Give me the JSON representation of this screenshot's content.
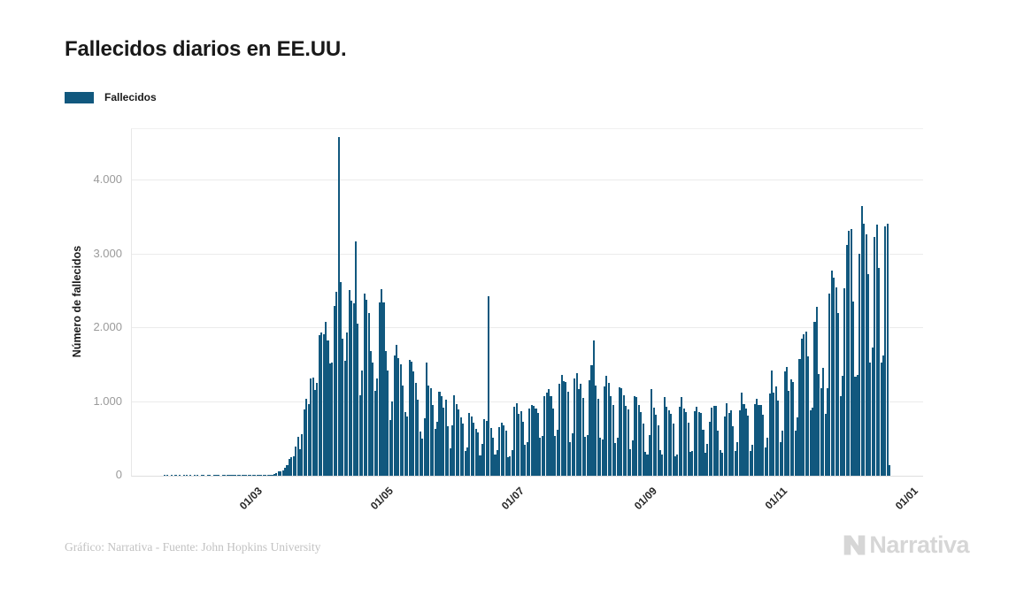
{
  "title": "Fallecidos diarios en EE.UU.",
  "legend": {
    "label": "Fallecidos",
    "color": "#11587e"
  },
  "y_axis": {
    "title": "Número de fallecidos",
    "ticks": [
      {
        "label": "0",
        "value": 0
      },
      {
        "label": "1.000",
        "value": 1000
      },
      {
        "label": "2.000",
        "value": 2000
      },
      {
        "label": "3.000",
        "value": 3000
      },
      {
        "label": "4.000",
        "value": 4000
      }
    ]
  },
  "x_axis": {
    "ticks": [
      {
        "label": "01/03",
        "day": 50
      },
      {
        "label": "01/05",
        "day": 111
      },
      {
        "label": "01/07",
        "day": 172
      },
      {
        "label": "01/09",
        "day": 234
      },
      {
        "label": "01/11",
        "day": 295
      },
      {
        "label": "01/01",
        "day": 356
      }
    ]
  },
  "footer": {
    "credit": "Gráfico: Narrativa - Fuente: John Hopkins University",
    "brand": "Narrativa"
  },
  "chart_data": {
    "type": "bar",
    "title": "Fallecidos diarios en EE.UU.",
    "xlabel": "",
    "ylabel": "Número de fallecidos",
    "series_name": "Fallecidos",
    "bar_color": "#11587e",
    "grid": true,
    "legend_position": "top-left",
    "ylim": [
      0,
      4700
    ],
    "y_tick_interval": 1000,
    "axis_start_date": "2020-01-11",
    "axis_total_days": 369,
    "series_start_date": "2020-01-26",
    "series_day_offset": 15,
    "x_tick_labels": [
      "01/03",
      "01/05",
      "01/07",
      "01/09",
      "01/11",
      "01/01"
    ],
    "notable_points": {
      "max_spike": {
        "date": "2020-04-16",
        "value": 4591
      },
      "june_spike": {
        "date": "2020-06-25",
        "value": 2437
      },
      "summer_peak": {
        "date": "2020-08-12",
        "value": 1833
      },
      "december_peak": {
        "date": "2020-12-16",
        "value": 3656
      },
      "last_partial_day": {
        "date": "2020-12-29",
        "value": 150
      }
    },
    "values": [
      1,
      1,
      0,
      1,
      0,
      1,
      0,
      1,
      0,
      1,
      1,
      0,
      1,
      0,
      1,
      1,
      0,
      1,
      1,
      0,
      1,
      1,
      0,
      1,
      1,
      1,
      0,
      1,
      1,
      1,
      1,
      1,
      1,
      1,
      3,
      1,
      2,
      3,
      2,
      4,
      3,
      4,
      4,
      4,
      5,
      8,
      7,
      10,
      11,
      12,
      18,
      23,
      41,
      57,
      58,
      68,
      111,
      140,
      225,
      247,
      268,
      401,
      525,
      363,
      558,
      895,
      1049,
      968,
      1321,
      1331,
      1165,
      1255,
      1906,
      1940,
      1922,
      2087,
      1830,
      1528,
      1535,
      2299,
      2494,
      4591,
      2625,
      1856,
      1561,
      1939,
      2524,
      2376,
      2341,
      3179,
      2065,
      1087,
      1421,
      2470,
      2390,
      2201,
      1691,
      1535,
      1154,
      1324,
      2350,
      2528,
      2353,
      1687,
      1422,
      750,
      1008,
      1630,
      1772,
      1595,
      1508,
      1218,
      865,
      808,
      1568,
      1552,
      1418,
      1263,
      1032,
      605,
      505,
      774,
      1535,
      1223,
      1193,
      960,
      638,
      730,
      1134,
      1083,
      921,
      1036,
      670,
      373,
      687,
      1093,
      972,
      902,
      792,
      709,
      331,
      389,
      851,
      800,
      722,
      638,
      586,
      271,
      430,
      766,
      739,
      2437,
      648,
      512,
      289,
      351,
      658,
      724,
      679,
      612,
      254,
      263,
      351,
      930,
      989,
      834,
      870,
      737,
      420,
      456,
      916,
      961,
      942,
      908,
      853,
      516,
      544,
      1080,
      1129,
      1170,
      1078,
      916,
      542,
      628,
      1244,
      1364,
      1280,
      1266,
      1139,
      453,
      571,
      1324,
      1387,
      1181,
      1242,
      1051,
      531,
      546,
      1299,
      1493,
      1833,
      1222,
      1042,
      510,
      490,
      1210,
      1355,
      1263,
      1079,
      965,
      447,
      510,
      1205,
      1183,
      1096,
      946,
      903,
      363,
      474,
      1084,
      1068,
      954,
      862,
      713,
      326,
      283,
      557,
      1174,
      922,
      826,
      680,
      343,
      292,
      1066,
      939,
      893,
      845,
      704,
      266,
      288,
      930,
      1063,
      914,
      859,
      716,
      320,
      332,
      871,
      940,
      867,
      846,
      625,
      315,
      434,
      731,
      922,
      945,
      952,
      613,
      352,
      308,
      801,
      980,
      856,
      890,
      677,
      340,
      461,
      890,
      1124,
      977,
      907,
      817,
      340,
      421,
      977,
      1043,
      961,
      959,
      827,
      379,
      518,
      1112,
      1423,
      1133,
      1214,
      1020,
      459,
      607,
      1419,
      1474,
      1156,
      1302,
      1266,
      607,
      795,
      1580,
      1853,
      1924,
      1950,
      1617,
      890,
      926,
      2090,
      2293,
      1381,
      1187,
      1457,
      834,
      1185,
      2473,
      2777,
      2688,
      2552,
      2208,
      1085,
      1352,
      2546,
      3124,
      3317,
      3343,
      2368,
      1345,
      1369,
      3005,
      3656,
      3420,
      3270,
      2729,
      1539,
      1734,
      3239,
      3401,
      2816,
      1532,
      1632,
      3380,
      3420,
      150
    ]
  }
}
